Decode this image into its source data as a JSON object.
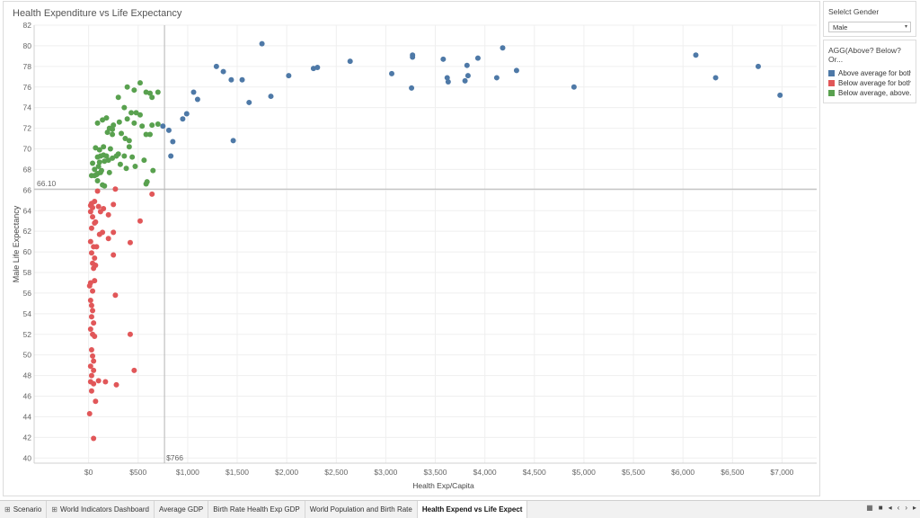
{
  "chart": {
    "title": "Health Expenditure vs Life Expectancy",
    "reference_lines": {
      "y_label": "66.10",
      "x_label": "$766"
    }
  },
  "chart_data": {
    "type": "scatter",
    "title": "Health Expenditure vs Life Expectancy",
    "xlabel": "Health Exp/Capita",
    "ylabel": "Male  Life  Expectancy",
    "xlim": [
      -550,
      7350
    ],
    "ylim": [
      39.5,
      82
    ],
    "x_ticks": [
      0,
      500,
      1000,
      1500,
      2000,
      2500,
      3000,
      3500,
      4000,
      4500,
      5000,
      5500,
      6000,
      6500,
      7000
    ],
    "x_tick_labels": [
      "$0",
      "$500",
      "$1,000",
      "$1,500",
      "$2,000",
      "$2,500",
      "$3,000",
      "$3,500",
      "$4,000",
      "$4,500",
      "$5,000",
      "$5,500",
      "$6,000",
      "$6,500",
      "$7,000"
    ],
    "y_ticks": [
      40,
      42,
      44,
      46,
      48,
      50,
      52,
      54,
      56,
      58,
      60,
      62,
      64,
      66,
      68,
      70,
      72,
      74,
      76,
      78,
      80,
      82
    ],
    "reference_lines": {
      "y": 66.1,
      "x": 766
    },
    "grid": true,
    "series": [
      {
        "name": "Above average for both",
        "color": "#4e79a7",
        "points": [
          [
            750,
            72.2
          ],
          [
            810,
            71.8
          ],
          [
            830,
            69.3
          ],
          [
            850,
            70.7
          ],
          [
            950,
            72.9
          ],
          [
            990,
            73.4
          ],
          [
            1060,
            75.5
          ],
          [
            1100,
            74.8
          ],
          [
            1290,
            78.0
          ],
          [
            1360,
            77.5
          ],
          [
            1440,
            76.7
          ],
          [
            1460,
            70.8
          ],
          [
            1550,
            76.7
          ],
          [
            1620,
            74.5
          ],
          [
            1750,
            80.2
          ],
          [
            1840,
            75.1
          ],
          [
            2020,
            77.1
          ],
          [
            2270,
            77.8
          ],
          [
            2310,
            77.9
          ],
          [
            2640,
            78.5
          ],
          [
            3060,
            77.3
          ],
          [
            3260,
            75.9
          ],
          [
            3270,
            79.1
          ],
          [
            3270,
            78.9
          ],
          [
            3580,
            78.7
          ],
          [
            3620,
            76.9
          ],
          [
            3630,
            76.5
          ],
          [
            3800,
            76.6
          ],
          [
            3820,
            78.1
          ],
          [
            3830,
            77.1
          ],
          [
            3930,
            78.8
          ],
          [
            4120,
            76.9
          ],
          [
            4180,
            79.8
          ],
          [
            4320,
            77.6
          ],
          [
            4900,
            76.0
          ],
          [
            6130,
            79.1
          ],
          [
            6330,
            76.9
          ],
          [
            6760,
            78.0
          ],
          [
            6980,
            75.2
          ]
        ]
      },
      {
        "name": "Below average for both",
        "color": "#e15759",
        "points": [
          [
            20,
            64.5
          ],
          [
            30,
            64.7
          ],
          [
            40,
            64.3
          ],
          [
            60,
            64.9
          ],
          [
            90,
            65.9
          ],
          [
            100,
            64.4
          ],
          [
            20,
            63.9
          ],
          [
            40,
            63.4
          ],
          [
            70,
            62.9
          ],
          [
            120,
            63.9
          ],
          [
            150,
            64.2
          ],
          [
            200,
            63.6
          ],
          [
            250,
            64.6
          ],
          [
            30,
            62.3
          ],
          [
            60,
            62.8
          ],
          [
            110,
            61.7
          ],
          [
            140,
            61.9
          ],
          [
            250,
            61.9
          ],
          [
            20,
            61.0
          ],
          [
            50,
            60.5
          ],
          [
            80,
            60.5
          ],
          [
            200,
            61.3
          ],
          [
            270,
            66.1
          ],
          [
            30,
            59.9
          ],
          [
            60,
            59.4
          ],
          [
            40,
            58.9
          ],
          [
            70,
            58.7
          ],
          [
            50,
            58.4
          ],
          [
            250,
            59.7
          ],
          [
            20,
            57.0
          ],
          [
            10,
            56.7
          ],
          [
            60,
            57.2
          ],
          [
            40,
            56.2
          ],
          [
            270,
            55.8
          ],
          [
            20,
            55.3
          ],
          [
            30,
            54.8
          ],
          [
            40,
            54.3
          ],
          [
            30,
            53.7
          ],
          [
            50,
            53.1
          ],
          [
            20,
            52.5
          ],
          [
            40,
            52.0
          ],
          [
            60,
            51.8
          ],
          [
            420,
            60.9
          ],
          [
            520,
            63.0
          ],
          [
            640,
            65.6
          ],
          [
            30,
            50.5
          ],
          [
            40,
            49.9
          ],
          [
            50,
            49.4
          ],
          [
            420,
            52.0
          ],
          [
            460,
            48.5
          ],
          [
            20,
            48.9
          ],
          [
            50,
            48.5
          ],
          [
            30,
            48.0
          ],
          [
            20,
            47.4
          ],
          [
            50,
            47.2
          ],
          [
            100,
            47.5
          ],
          [
            170,
            47.4
          ],
          [
            280,
            47.1
          ],
          [
            30,
            46.5
          ],
          [
            70,
            45.5
          ],
          [
            10,
            44.3
          ],
          [
            50,
            41.9
          ]
        ]
      },
      {
        "name": "Below average, above...",
        "color": "#59a14f",
        "points": [
          [
            390,
            76.0
          ],
          [
            460,
            75.7
          ],
          [
            520,
            76.4
          ],
          [
            580,
            75.5
          ],
          [
            620,
            75.4
          ],
          [
            700,
            75.5
          ],
          [
            300,
            75.0
          ],
          [
            640,
            75.0
          ],
          [
            360,
            74.0
          ],
          [
            430,
            73.5
          ],
          [
            480,
            73.5
          ],
          [
            520,
            73.3
          ],
          [
            90,
            72.5
          ],
          [
            140,
            72.8
          ],
          [
            180,
            73.0
          ],
          [
            250,
            72.3
          ],
          [
            310,
            72.6
          ],
          [
            390,
            72.9
          ],
          [
            460,
            72.5
          ],
          [
            540,
            72.2
          ],
          [
            210,
            72.0
          ],
          [
            240,
            71.9
          ],
          [
            190,
            71.6
          ],
          [
            240,
            71.4
          ],
          [
            330,
            71.5
          ],
          [
            370,
            71.0
          ],
          [
            410,
            70.8
          ],
          [
            580,
            71.4
          ],
          [
            620,
            71.4
          ],
          [
            640,
            72.3
          ],
          [
            700,
            72.4
          ],
          [
            70,
            70.1
          ],
          [
            110,
            69.9
          ],
          [
            150,
            70.2
          ],
          [
            220,
            70.0
          ],
          [
            300,
            69.5
          ],
          [
            410,
            70.2
          ],
          [
            90,
            69.2
          ],
          [
            120,
            69.3
          ],
          [
            150,
            69.4
          ],
          [
            180,
            69.3
          ],
          [
            240,
            69.1
          ],
          [
            280,
            69.3
          ],
          [
            360,
            69.3
          ],
          [
            440,
            69.2
          ],
          [
            560,
            68.9
          ],
          [
            40,
            68.6
          ],
          [
            110,
            68.7
          ],
          [
            160,
            68.8
          ],
          [
            200,
            68.9
          ],
          [
            320,
            68.5
          ],
          [
            380,
            68.1
          ],
          [
            470,
            68.3
          ],
          [
            60,
            68.0
          ],
          [
            100,
            68.3
          ],
          [
            130,
            67.9
          ],
          [
            80,
            67.5
          ],
          [
            120,
            67.7
          ],
          [
            210,
            67.7
          ],
          [
            30,
            67.4
          ],
          [
            60,
            67.4
          ],
          [
            90,
            67.6
          ],
          [
            90,
            66.9
          ],
          [
            140,
            66.5
          ],
          [
            160,
            66.4
          ],
          [
            580,
            66.6
          ],
          [
            590,
            66.8
          ],
          [
            650,
            67.9
          ]
        ]
      }
    ]
  },
  "sidebar": {
    "filter": {
      "title": "Selelct Gender",
      "value": "Male",
      "arrow": "▾"
    },
    "legend": {
      "title": "AGG(Above? Below? Or...",
      "items": [
        {
          "label": "Above average for both",
          "color": "#4e79a7"
        },
        {
          "label": "Below average for both",
          "color": "#e15759"
        },
        {
          "label": "Below average, above...",
          "color": "#59a14f"
        }
      ]
    }
  },
  "tabs": [
    {
      "label": "Scenario",
      "icon": "grid-icon",
      "active": false
    },
    {
      "label": "World Indicators Dashboard",
      "icon": "grid-icon",
      "active": false
    },
    {
      "label": "Average GDP",
      "active": false
    },
    {
      "label": "Birth Rate Health Exp GDP",
      "active": false
    },
    {
      "label": "World Population and Birth Rate",
      "active": false
    },
    {
      "label": "Health Expend vs Life Expect",
      "active": true
    }
  ]
}
